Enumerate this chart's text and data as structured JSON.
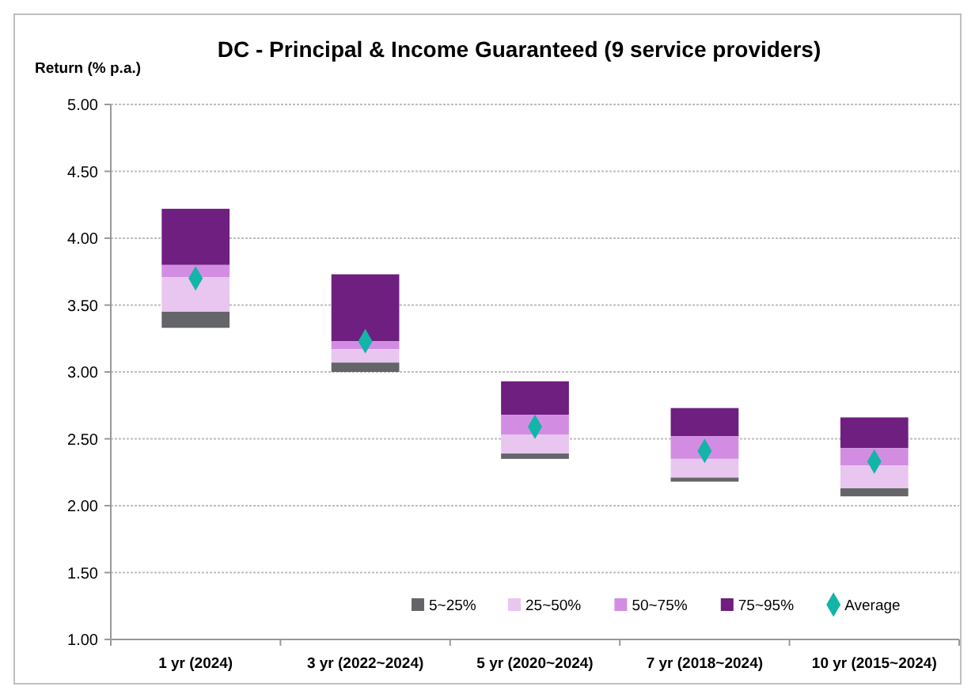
{
  "chart_data": {
    "type": "bar",
    "title": "DC - Principal & Income Guaranteed (9 service providers)",
    "ylabel": "Return (% p.a.)",
    "categories": [
      "1 yr (2024)",
      "3 yr (2022~2024)",
      "5 yr (2020~2024)",
      "7 yr (2018~2024)",
      "10 yr (2015~2024)"
    ],
    "series": [
      {
        "name": "5~25%",
        "color": "#646569",
        "base": [
          3.33,
          3.0,
          2.35,
          2.18,
          2.07
        ],
        "values": [
          0.12,
          0.07,
          0.04,
          0.03,
          0.06
        ]
      },
      {
        "name": "25~50%",
        "color": "#e9c6ef",
        "base": [
          3.45,
          3.07,
          2.39,
          2.21,
          2.13
        ],
        "values": [
          0.26,
          0.1,
          0.14,
          0.14,
          0.17
        ]
      },
      {
        "name": "50~75%",
        "color": "#d28de3",
        "base": [
          3.71,
          3.17,
          2.53,
          2.35,
          2.3
        ],
        "values": [
          0.09,
          0.06,
          0.15,
          0.17,
          0.13
        ]
      },
      {
        "name": "75~95%",
        "color": "#6f1f7f",
        "base": [
          3.8,
          3.23,
          2.68,
          2.52,
          2.43
        ],
        "values": [
          0.42,
          0.5,
          0.25,
          0.21,
          0.23
        ]
      },
      {
        "name": "Average",
        "type": "scatter",
        "marker": "diamond",
        "color": "#12b5a8",
        "x": [
          "1 yr (2024)",
          "3 yr (2022~2024)",
          "5 yr (2020~2024)",
          "7 yr (2018~2024)",
          "10 yr (2015~2024)"
        ],
        "values": [
          3.7,
          3.23,
          2.59,
          2.41,
          2.33
        ]
      }
    ],
    "ylim": [
      1,
      5
    ],
    "yticks": [
      {
        "value": 1,
        "label": "1.00"
      },
      {
        "value": 1.5,
        "label": "1.50"
      },
      {
        "value": 2,
        "label": "2.00"
      },
      {
        "value": 2.5,
        "label": "2.50"
      },
      {
        "value": 3,
        "label": "3.00"
      },
      {
        "value": 3.5,
        "label": "3.50"
      },
      {
        "value": 4,
        "label": "4.00"
      },
      {
        "value": 4.5,
        "label": "4.50"
      },
      {
        "value": 5,
        "label": "5.00"
      }
    ],
    "grid": "y",
    "legend": "bottom right"
  }
}
